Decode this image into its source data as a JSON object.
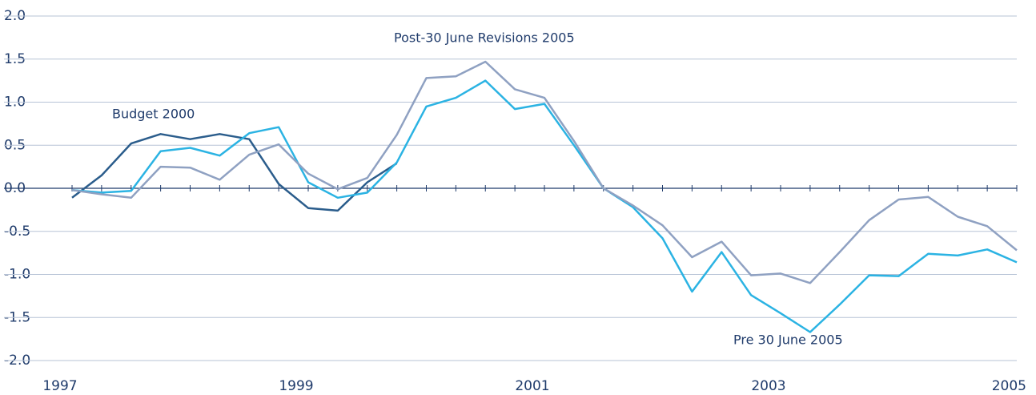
{
  "chart_data": {
    "type": "line",
    "categories": [
      "1997",
      null,
      null,
      null,
      null,
      null,
      null,
      null,
      "1999",
      null,
      null,
      null,
      null,
      null,
      null,
      null,
      "2001",
      null,
      null,
      null,
      null,
      null,
      null,
      null,
      "2003",
      null,
      null,
      null,
      null,
      null,
      null,
      null,
      "2005"
    ],
    "series": [
      {
        "name": "Budget 2000",
        "color": "#2b5d8c",
        "values": [
          -0.11,
          0.15,
          0.52,
          0.63,
          0.57,
          0.63,
          0.57,
          0.05,
          -0.23,
          -0.26,
          0.07,
          0.29,
          null,
          null,
          null,
          null,
          null,
          null,
          null,
          null,
          null,
          null,
          null,
          null,
          null,
          null,
          null,
          null,
          null,
          null,
          null,
          null,
          null
        ]
      },
      {
        "name": "Pre 30 June 2005",
        "color": "#2bb3e3",
        "values": [
          -0.02,
          -0.05,
          -0.03,
          0.43,
          0.47,
          0.38,
          0.64,
          0.71,
          0.07,
          -0.11,
          -0.05,
          0.3,
          0.95,
          1.05,
          1.25,
          0.92,
          0.98,
          0.5,
          0.0,
          -0.22,
          -0.58,
          -1.2,
          -0.74,
          -1.24,
          -1.45,
          -1.67,
          -1.35,
          -1.01,
          -1.02,
          -0.76,
          -0.78,
          -0.71,
          -0.86
        ]
      },
      {
        "name": "Post-30 June Revisions 2005",
        "color": "#8fa1c2",
        "values": [
          -0.02,
          -0.07,
          -0.11,
          0.25,
          0.24,
          0.1,
          0.39,
          0.51,
          0.17,
          -0.01,
          0.12,
          0.62,
          1.28,
          1.3,
          1.47,
          1.15,
          1.05,
          0.55,
          0.0,
          -0.2,
          -0.43,
          -0.8,
          -0.62,
          -1.01,
          -0.99,
          -1.1,
          -0.74,
          -0.37,
          -0.13,
          -0.1,
          -0.33,
          -0.44,
          -0.72
        ]
      }
    ],
    "ylim": [
      -2.0,
      2.0
    ],
    "yticks": [
      {
        "value": -2.0,
        "label": "-2.0"
      },
      -1.5,
      {
        "value": -1.0,
        "label": "-1.0"
      },
      -0.5,
      {
        "value": 0.0,
        "label": "0.0"
      },
      0.5,
      {
        "value": 1.0,
        "label": "1.0"
      },
      1.5,
      {
        "value": 2.0,
        "label": "2.0"
      }
    ],
    "grid": true
  }
}
